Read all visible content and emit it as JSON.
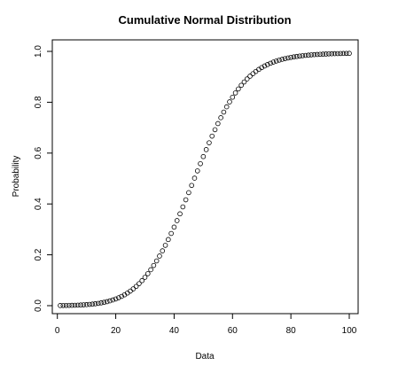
{
  "chart_data": {
    "type": "scatter",
    "title": "Cumulative Normal Distribution",
    "xlabel": "Data",
    "ylabel": "Probability",
    "xlim": [
      1,
      100
    ],
    "ylim": [
      0,
      1
    ],
    "x_ticks": [
      0,
      20,
      40,
      60,
      80,
      100
    ],
    "y_ticks": [
      0.0,
      0.2,
      0.4,
      0.6,
      0.8,
      1.0
    ],
    "x_tick_labels": [
      "0",
      "20",
      "40",
      "60",
      "80",
      "100"
    ],
    "y_tick_labels": [
      "0.0",
      "0.2",
      "0.4",
      "0.6",
      "0.8",
      "1.0"
    ],
    "grid": false,
    "legend": "none",
    "marker": "open-circle",
    "colors": {
      "marker_stroke": "#000000",
      "axis": "#000000",
      "background": "#ffffff"
    },
    "series": [
      {
        "x": [
          1,
          2,
          3,
          4,
          5,
          6,
          7,
          8,
          9,
          10,
          11,
          12,
          13,
          14,
          15,
          16,
          17,
          18,
          19,
          20,
          21,
          22,
          23,
          24,
          25,
          26,
          27,
          28,
          29,
          30,
          31,
          32,
          33,
          34,
          35,
          36,
          37,
          38,
          39,
          40,
          41,
          42,
          43,
          44,
          45,
          46,
          47,
          48,
          49,
          50,
          51,
          52,
          53,
          54,
          55,
          56,
          57,
          58,
          59,
          60,
          61,
          62,
          63,
          64,
          65,
          66,
          67,
          68,
          69,
          70,
          71,
          72,
          73,
          74,
          75,
          76,
          77,
          78,
          79,
          80,
          81,
          82,
          83,
          84,
          85,
          86,
          87,
          88,
          89,
          90,
          91,
          92,
          93,
          94,
          95,
          96,
          97,
          98,
          99,
          100
        ],
        "y": [
          0.0005,
          0.0007,
          0.0009,
          0.0011,
          0.0014,
          0.0017,
          0.0022,
          0.0027,
          0.0034,
          0.0041,
          0.0051,
          0.0062,
          0.0075,
          0.0091,
          0.011,
          0.0132,
          0.0158,
          0.0189,
          0.0224,
          0.0265,
          0.0312,
          0.0366,
          0.0427,
          0.0496,
          0.0574,
          0.0661,
          0.0758,
          0.0866,
          0.0985,
          0.1115,
          0.1258,
          0.1413,
          0.158,
          0.176,
          0.1952,
          0.2157,
          0.2373,
          0.2601,
          0.284,
          0.3089,
          0.3346,
          0.3612,
          0.3885,
          0.4163,
          0.4445,
          0.4729,
          0.5015,
          0.53,
          0.5583,
          0.5863,
          0.6138,
          0.6406,
          0.6667,
          0.6919,
          0.7161,
          0.7393,
          0.7613,
          0.782,
          0.8015,
          0.8197,
          0.8366,
          0.8522,
          0.8666,
          0.8797,
          0.8917,
          0.9025,
          0.9123,
          0.9211,
          0.9291,
          0.9362,
          0.9426,
          0.9483,
          0.9534,
          0.958,
          0.962,
          0.9656,
          0.9688,
          0.9716,
          0.9741,
          0.9764,
          0.9783,
          0.9801,
          0.9816,
          0.983,
          0.9843,
          0.9853,
          0.9863,
          0.9871,
          0.9879,
          0.9886,
          0.9892,
          0.9897,
          0.9902,
          0.9906,
          0.991,
          0.9913,
          0.9916,
          0.9919,
          0.9921,
          0.9923
        ]
      }
    ]
  }
}
